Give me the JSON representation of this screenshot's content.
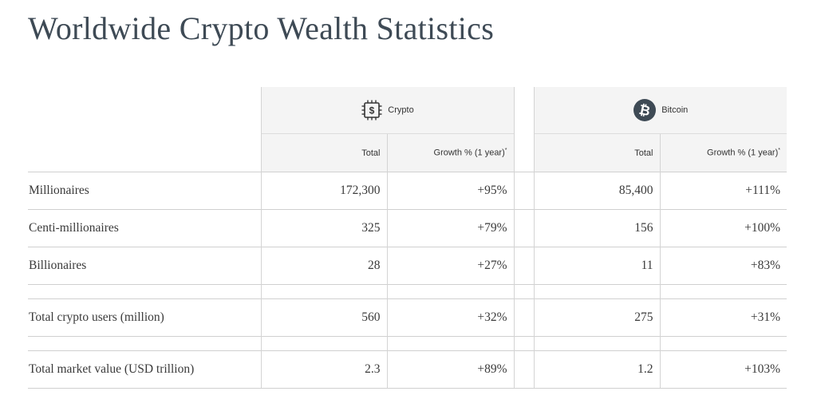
{
  "title": "Worldwide Crypto Wealth Statistics",
  "groups": {
    "crypto": {
      "label": "Crypto",
      "icon": "chip-dollar-icon"
    },
    "bitcoin": {
      "label": "Bitcoin",
      "icon": "bitcoin-icon"
    }
  },
  "subheaders": {
    "total": "Total",
    "growth": "Growth % (1 year)",
    "note_mark": "*"
  },
  "rows": [
    {
      "label": "Millionaires",
      "crypto_total": "172,300",
      "crypto_growth": "+95%",
      "bitcoin_total": "85,400",
      "bitcoin_growth": "+111%"
    },
    {
      "label": "Centi-millionaires",
      "crypto_total": "325",
      "crypto_growth": "+79%",
      "bitcoin_total": "156",
      "bitcoin_growth": "+100%"
    },
    {
      "label": "Billionaires",
      "crypto_total": "28",
      "crypto_growth": "+27%",
      "bitcoin_total": "11",
      "bitcoin_growth": "+83%"
    },
    {
      "label": "Total crypto users (million)",
      "crypto_total": "560",
      "crypto_growth": "+32%",
      "bitcoin_total": "275",
      "bitcoin_growth": "+31%"
    },
    {
      "label": "Total market value (USD trillion)",
      "crypto_total": "2.3",
      "crypto_growth": "+89%",
      "bitcoin_total": "1.2",
      "bitcoin_growth": "+103%"
    }
  ],
  "colors": {
    "title": "#3e4a55",
    "header_bg": "#f4f4f4",
    "bitcoin_circle": "#3e4a55",
    "grid": "#d0d0d0"
  }
}
